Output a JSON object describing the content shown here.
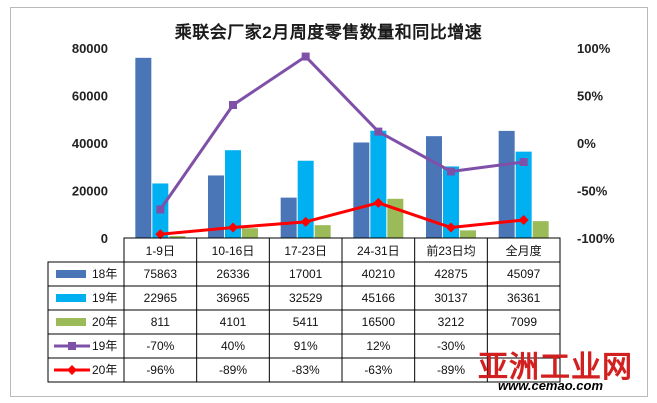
{
  "chart_data": {
    "type": "bar",
    "title": "乘联会厂家2月周度零售数量和同比增速",
    "categories": [
      "1-9日",
      "10-16日",
      "17-23日",
      "24-31日",
      "前23日均",
      "全月度"
    ],
    "left_axis": {
      "min": 0,
      "max": 80000,
      "ticks": [
        "0",
        "20000",
        "40000",
        "60000",
        "80000"
      ]
    },
    "right_axis": {
      "min": -100,
      "max": 100,
      "ticks": [
        "-100%",
        "-50%",
        "0%",
        "50%",
        "100%"
      ]
    },
    "bar_series": [
      {
        "name": "18年",
        "color": "#4a76b8",
        "values": [
          75863,
          26336,
          17001,
          40210,
          42875,
          45097
        ],
        "labels": [
          "75863",
          "26336",
          "17001",
          "40210",
          "42875",
          "45097"
        ]
      },
      {
        "name": "19年",
        "color": "#00b0f0",
        "values": [
          22965,
          36965,
          32529,
          45166,
          30137,
          36361
        ],
        "labels": [
          "22965",
          "36965",
          "32529",
          "45166",
          "30137",
          "36361"
        ]
      },
      {
        "name": "20年",
        "color": "#9bbb59",
        "values": [
          811,
          4101,
          5411,
          16500,
          3212,
          7099
        ],
        "labels": [
          "811",
          "4101",
          "5411",
          "16500",
          "3212",
          "7099"
        ]
      }
    ],
    "line_series": [
      {
        "name": "19年",
        "color": "#7f50a8",
        "marker": "square",
        "values": [
          -70,
          40,
          91,
          12,
          -30,
          -20
        ],
        "labels": [
          "-70%",
          "40%",
          "91%",
          "12%",
          "-30%",
          ""
        ]
      },
      {
        "name": "20年",
        "color": "#ff0000",
        "marker": "diamond",
        "values": [
          -96,
          -89,
          -83,
          -63,
          -89,
          -81
        ],
        "labels": [
          "-96%",
          "-89%",
          "-83%",
          "-63%",
          "-89%",
          ""
        ]
      }
    ]
  },
  "watermark": {
    "text_cn": "亚洲工业网",
    "text_url": "www.cemao.com"
  }
}
